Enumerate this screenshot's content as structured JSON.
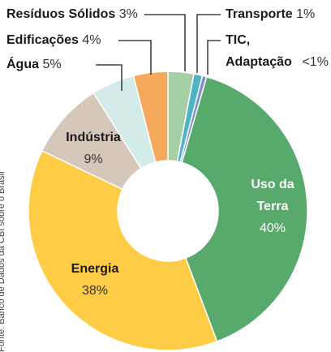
{
  "chart_data": {
    "type": "donut",
    "source": "Fonte: Banco de Dados da CBI sobre o Brasil",
    "categories": [
      "Resíduos Sólidos",
      "Transporte",
      "TIC, Adaptação",
      "Uso da Terra",
      "Energia",
      "Indústria",
      "Água",
      "Edificações"
    ],
    "values": [
      3,
      1,
      0.5,
      40,
      38,
      9,
      5,
      4
    ],
    "value_labels": [
      "3%",
      "1%",
      "<1%",
      "40%",
      "38%",
      "9%",
      "5%",
      "4%"
    ],
    "colors": [
      "#a5cfa5",
      "#4fb3c6",
      "#7f8fcb",
      "#58aa6c",
      "#fecd45",
      "#d5c8bb",
      "#d3ecea",
      "#f6a95a"
    ]
  }
}
